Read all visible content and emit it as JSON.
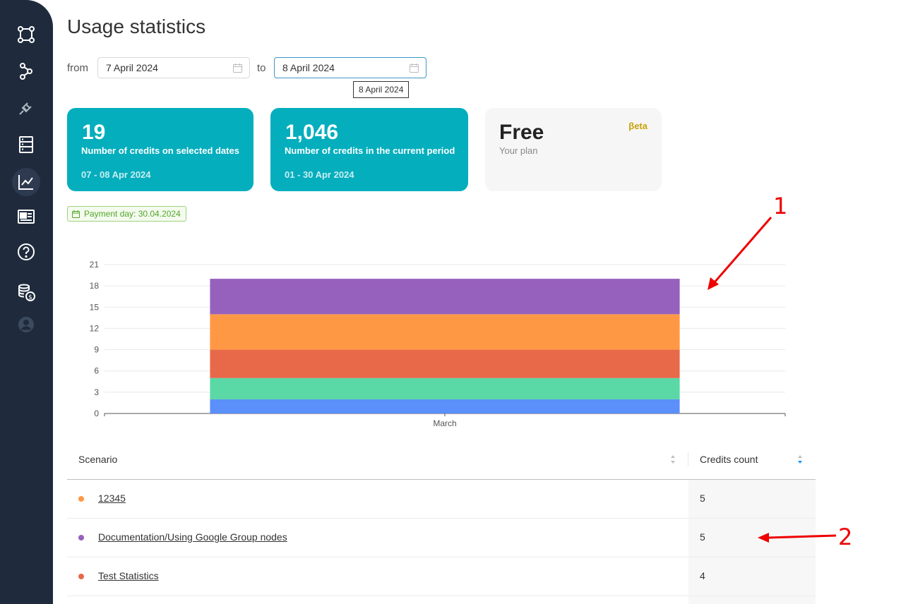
{
  "page": {
    "title": "Usage statistics"
  },
  "filters": {
    "from_label": "from",
    "to_label": "to",
    "from_value": "7 April 2024",
    "to_value": "8 April 2024",
    "tooltip": "8 April 2024"
  },
  "cards": [
    {
      "value": "19",
      "description": "Number of credits on selected dates",
      "dates": "07 - 08 Apr 2024"
    },
    {
      "value": "1,046",
      "description": "Number of credits in the current period",
      "dates": "01 - 30 Apr 2024"
    }
  ],
  "plan": {
    "name": "Free",
    "subtitle": "Your plan",
    "badge": "βeta"
  },
  "payment_badge": "Payment day: 30.04.2024",
  "colors": {
    "sidebar": "#1f2b3d",
    "card_accent": "#04aebd",
    "blue": "#5b8ff9",
    "green": "#5ad8a6",
    "red": "#e8684a",
    "orange": "#ff9845",
    "purple": "#9661bc",
    "annotation": "#e00000"
  },
  "sidebar_icons": [
    "scenarios-icon",
    "flow-icon",
    "plug-icon",
    "database-icon",
    "chart-line-icon",
    "news-icon",
    "help-icon",
    "coins-icon",
    "user-icon"
  ],
  "chart_data": {
    "type": "bar",
    "stacked": true,
    "categories": [
      "March"
    ],
    "series": [
      {
        "values": [
          2
        ],
        "color": "#5b8ff9"
      },
      {
        "values": [
          3
        ],
        "color": "#5ad8a6"
      },
      {
        "values": [
          4
        ],
        "color": "#e8684a"
      },
      {
        "values": [
          5
        ],
        "color": "#ff9845"
      },
      {
        "values": [
          5
        ],
        "color": "#9661bc"
      }
    ],
    "ylim": [
      0,
      21
    ],
    "yticks": [
      0,
      3,
      6,
      9,
      12,
      15,
      18,
      21
    ],
    "grid": true
  },
  "table": {
    "headers": {
      "scenario": "Scenario",
      "credits": "Credits count"
    },
    "rows": [
      {
        "name": "12345",
        "count": "5",
        "color": "#ff9845"
      },
      {
        "name": "Documentation/Using Google Group nodes",
        "count": "5",
        "color": "#9661bc"
      },
      {
        "name": "Test Statistics",
        "count": "4",
        "color": "#e8684a"
      }
    ]
  },
  "annotations": [
    "1",
    "2"
  ]
}
